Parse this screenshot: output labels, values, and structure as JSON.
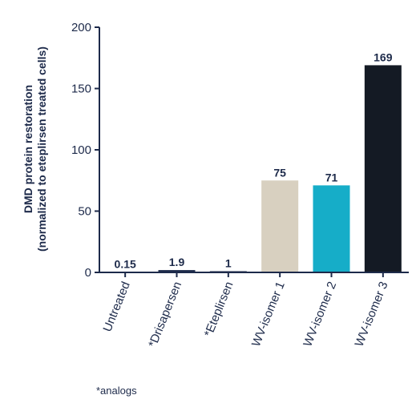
{
  "chart_data": {
    "type": "bar",
    "title": "",
    "categories": [
      "Untreated",
      "*Drisapersen",
      "*Eteplirsen",
      "WV-isomer 1",
      "WV-isomer 2",
      "WV-isomer 3"
    ],
    "values": [
      0.15,
      1.9,
      1,
      75,
      71,
      169
    ],
    "data_labels": [
      "0.15",
      "1.9",
      "1",
      "75",
      "71",
      "169"
    ],
    "bar_colors": [
      "#1d2a4a",
      "#1d2a4a",
      "#1d2a4a",
      "#d8d0c0",
      "#16adc8",
      "#141a24"
    ],
    "ylabel_lines": [
      "DMD protein restoration",
      "(normalized to eteplirsen treated cells)"
    ],
    "ylim": [
      0,
      200
    ],
    "yticks": [
      0,
      50,
      100,
      150,
      200
    ],
    "grid": false,
    "footnote": "*analogs"
  }
}
